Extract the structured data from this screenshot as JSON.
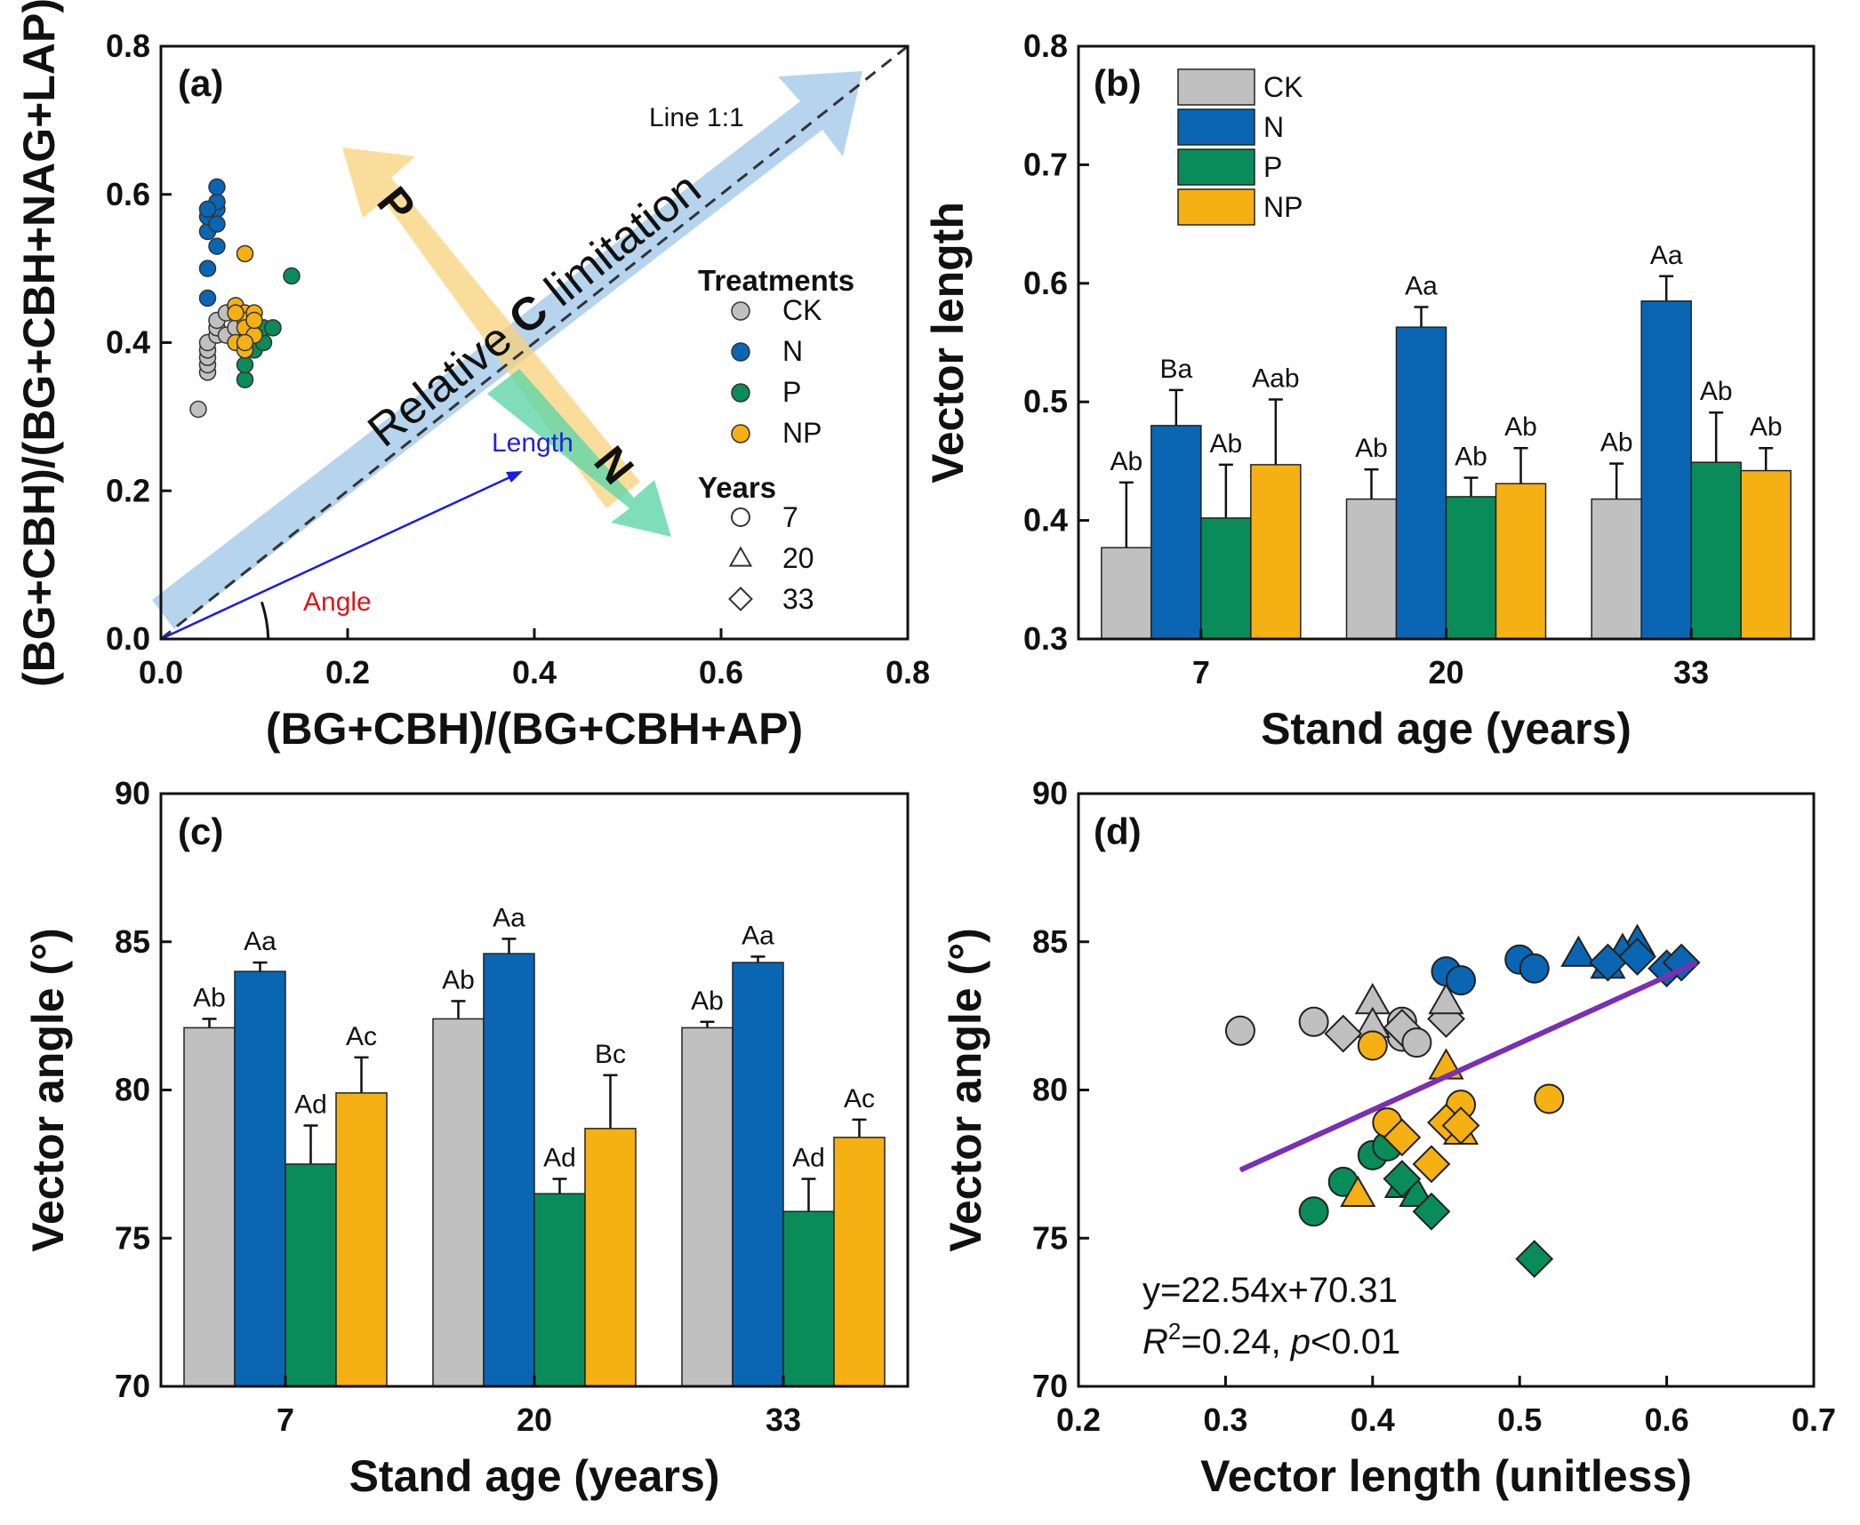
{
  "colors": {
    "CK": "#c0c0c0",
    "N": "#0a66b2",
    "P": "#0a8c5a",
    "NP": "#f5b014",
    "fit": "#7b2fb3"
  },
  "treatments": [
    "CK",
    "N",
    "P",
    "NP"
  ],
  "chart_data": [
    {
      "panel": "(a)",
      "type": "scatter",
      "xlabel": "(BG+CBH)/(BG+CBH+AP)",
      "ylabel": "(BG+CBH)/(BG+CBH+NAG+LAP)",
      "xlim": [
        0,
        0.8
      ],
      "ylim": [
        0,
        0.8
      ],
      "xticks": [
        "0.0",
        "0.2",
        "0.4",
        "0.6",
        "0.8"
      ],
      "yticks": [
        "0.0",
        "0.2",
        "0.4",
        "0.6",
        "0.8"
      ],
      "annotations": {
        "line": "Line 1:1",
        "c_pre": "Relative ",
        "c_bold": "C",
        "c_post": " limitation",
        "p": "P",
        "n": "N",
        "length": "Length",
        "angle": "Angle"
      },
      "legend": {
        "treat_title": "Treatments",
        "year_title": "Years",
        "years": [
          "7",
          "20",
          "33"
        ]
      },
      "series": [
        {
          "name": "CK",
          "points": [
            [
              0.04,
              0.31
            ],
            [
              0.05,
              0.36
            ],
            [
              0.05,
              0.37
            ],
            [
              0.05,
              0.38
            ],
            [
              0.05,
              0.39
            ],
            [
              0.05,
              0.4
            ],
            [
              0.06,
              0.41
            ],
            [
              0.06,
              0.42
            ],
            [
              0.06,
              0.43
            ],
            [
              0.07,
              0.44
            ],
            [
              0.07,
              0.41
            ],
            [
              0.08,
              0.42
            ]
          ]
        },
        {
          "name": "N",
          "points": [
            [
              0.05,
              0.46
            ],
            [
              0.05,
              0.5
            ],
            [
              0.05,
              0.55
            ],
            [
              0.05,
              0.57
            ],
            [
              0.06,
              0.58
            ],
            [
              0.06,
              0.56
            ],
            [
              0.06,
              0.59
            ],
            [
              0.06,
              0.61
            ],
            [
              0.05,
              0.58
            ],
            [
              0.06,
              0.53
            ]
          ]
        },
        {
          "name": "P",
          "points": [
            [
              0.09,
              0.35
            ],
            [
              0.09,
              0.37
            ],
            [
              0.1,
              0.39
            ],
            [
              0.1,
              0.41
            ],
            [
              0.11,
              0.4
            ],
            [
              0.11,
              0.42
            ],
            [
              0.12,
              0.42
            ],
            [
              0.14,
              0.49
            ],
            [
              0.09,
              0.4
            ]
          ]
        },
        {
          "name": "NP",
          "points": [
            [
              0.09,
              0.52
            ],
            [
              0.08,
              0.45
            ],
            [
              0.09,
              0.44
            ],
            [
              0.09,
              0.43
            ],
            [
              0.09,
              0.42
            ],
            [
              0.08,
              0.4
            ],
            [
              0.09,
              0.39
            ],
            [
              0.1,
              0.44
            ],
            [
              0.1,
              0.41
            ],
            [
              0.1,
              0.43
            ],
            [
              0.08,
              0.44
            ],
            [
              0.09,
              0.4
            ]
          ]
        }
      ]
    },
    {
      "panel": "(b)",
      "type": "bar",
      "xlabel": "Stand age (years)",
      "ylabel": "Vector length",
      "categories": [
        "7",
        "20",
        "33"
      ],
      "ylim": [
        0.3,
        0.8
      ],
      "yticks": [
        "0.3",
        "0.4",
        "0.5",
        "0.6",
        "0.7",
        "0.8"
      ],
      "series": [
        {
          "name": "CK",
          "values": [
            0.377,
            0.418,
            0.418
          ],
          "errors": [
            0.055,
            0.025,
            0.03
          ],
          "labels": [
            "Ab",
            "Ab",
            "Ab"
          ]
        },
        {
          "name": "N",
          "values": [
            0.48,
            0.563,
            0.585
          ],
          "errors": [
            0.03,
            0.017,
            0.021
          ],
          "labels": [
            "Ba",
            "Aa",
            "Aa"
          ]
        },
        {
          "name": "P",
          "values": [
            0.402,
            0.42,
            0.449
          ],
          "errors": [
            0.045,
            0.016,
            0.042
          ],
          "labels": [
            "Ab",
            "Ab",
            "Ab"
          ]
        },
        {
          "name": "NP",
          "values": [
            0.447,
            0.431,
            0.442
          ],
          "errors": [
            0.055,
            0.03,
            0.019
          ],
          "labels": [
            "Aab",
            "Ab",
            "Ab"
          ]
        }
      ]
    },
    {
      "panel": "(c)",
      "type": "bar",
      "xlabel": "Stand age (years)",
      "ylabel": "Vector angle (°)",
      "categories": [
        "7",
        "20",
        "33"
      ],
      "ylim": [
        70,
        90
      ],
      "yticks": [
        "70",
        "75",
        "80",
        "85",
        "90"
      ],
      "series": [
        {
          "name": "CK",
          "values": [
            82.1,
            82.4,
            82.1
          ],
          "errors": [
            0.3,
            0.6,
            0.2
          ],
          "labels": [
            "Ab",
            "Ab",
            "Ab"
          ]
        },
        {
          "name": "N",
          "values": [
            84.0,
            84.6,
            84.3
          ],
          "errors": [
            0.3,
            0.5,
            0.2
          ],
          "labels": [
            "Aa",
            "Aa",
            "Aa"
          ]
        },
        {
          "name": "P",
          "values": [
            77.5,
            76.5,
            75.9
          ],
          "errors": [
            1.3,
            0.5,
            1.1
          ],
          "labels": [
            "Ad",
            "Ad",
            "Ad"
          ]
        },
        {
          "name": "NP",
          "values": [
            79.9,
            78.7,
            78.4
          ],
          "errors": [
            1.2,
            1.8,
            0.6
          ],
          "labels": [
            "Ac",
            "Bc",
            "Ac"
          ]
        }
      ]
    },
    {
      "panel": "(d)",
      "type": "scatter",
      "xlabel": "Vector length (unitless)",
      "ylabel": "Vector angle (°)",
      "xlim": [
        0.2,
        0.7
      ],
      "ylim": [
        70,
        90
      ],
      "xticks": [
        "0.2",
        "0.3",
        "0.4",
        "0.5",
        "0.6",
        "0.7"
      ],
      "yticks": [
        "70",
        "75",
        "80",
        "85",
        "90"
      ],
      "fit": {
        "slope": 22.54,
        "intercept": 70.31,
        "x_range": [
          0.31,
          0.62
        ]
      },
      "equation": "y=22.54x+70.31",
      "r2_text": "R",
      "r2_sup": "2",
      "stats_mid": "=0.24, ",
      "p_text": "p",
      "p_val": "<0.01",
      "series": [
        {
          "name": "CK",
          "points": [
            [
              0.31,
              82.0,
              "o"
            ],
            [
              0.36,
              82.3,
              "o"
            ],
            [
              0.42,
              81.8,
              "o"
            ],
            [
              0.42,
              82.3,
              "o"
            ],
            [
              0.4,
              83.0,
              "t"
            ],
            [
              0.4,
              82.2,
              "t"
            ],
            [
              0.38,
              81.9,
              "d"
            ],
            [
              0.42,
              82.1,
              "d"
            ],
            [
              0.45,
              82.4,
              "d"
            ],
            [
              0.45,
              83.0,
              "t"
            ],
            [
              0.43,
              81.6,
              "o"
            ]
          ]
        },
        {
          "name": "N",
          "points": [
            [
              0.45,
              84.0,
              "o"
            ],
            [
              0.46,
              83.7,
              "o"
            ],
            [
              0.5,
              84.4,
              "o"
            ],
            [
              0.51,
              84.1,
              "o"
            ],
            [
              0.54,
              84.6,
              "t"
            ],
            [
              0.56,
              84.2,
              "t"
            ],
            [
              0.58,
              85.0,
              "t"
            ],
            [
              0.57,
              84.7,
              "t"
            ],
            [
              0.56,
              84.3,
              "d"
            ],
            [
              0.58,
              84.5,
              "d"
            ],
            [
              0.6,
              84.1,
              "d"
            ],
            [
              0.61,
              84.3,
              "d"
            ]
          ]
        },
        {
          "name": "P",
          "points": [
            [
              0.36,
              75.9,
              "o"
            ],
            [
              0.38,
              76.9,
              "o"
            ],
            [
              0.4,
              77.8,
              "o"
            ],
            [
              0.41,
              78.1,
              "o"
            ],
            [
              0.42,
              76.8,
              "t"
            ],
            [
              0.43,
              76.5,
              "t"
            ],
            [
              0.42,
              77.0,
              "d"
            ],
            [
              0.44,
              75.9,
              "d"
            ],
            [
              0.51,
              74.3,
              "d"
            ]
          ]
        },
        {
          "name": "NP",
          "points": [
            [
              0.4,
              81.5,
              "o"
            ],
            [
              0.41,
              78.9,
              "o"
            ],
            [
              0.46,
              79.5,
              "o"
            ],
            [
              0.52,
              79.7,
              "o"
            ],
            [
              0.39,
              76.5,
              "t"
            ],
            [
              0.45,
              80.8,
              "t"
            ],
            [
              0.46,
              78.6,
              "t"
            ],
            [
              0.42,
              78.4,
              "d"
            ],
            [
              0.44,
              77.5,
              "d"
            ],
            [
              0.45,
              78.9,
              "d"
            ],
            [
              0.46,
              78.8,
              "d"
            ]
          ]
        }
      ]
    }
  ]
}
